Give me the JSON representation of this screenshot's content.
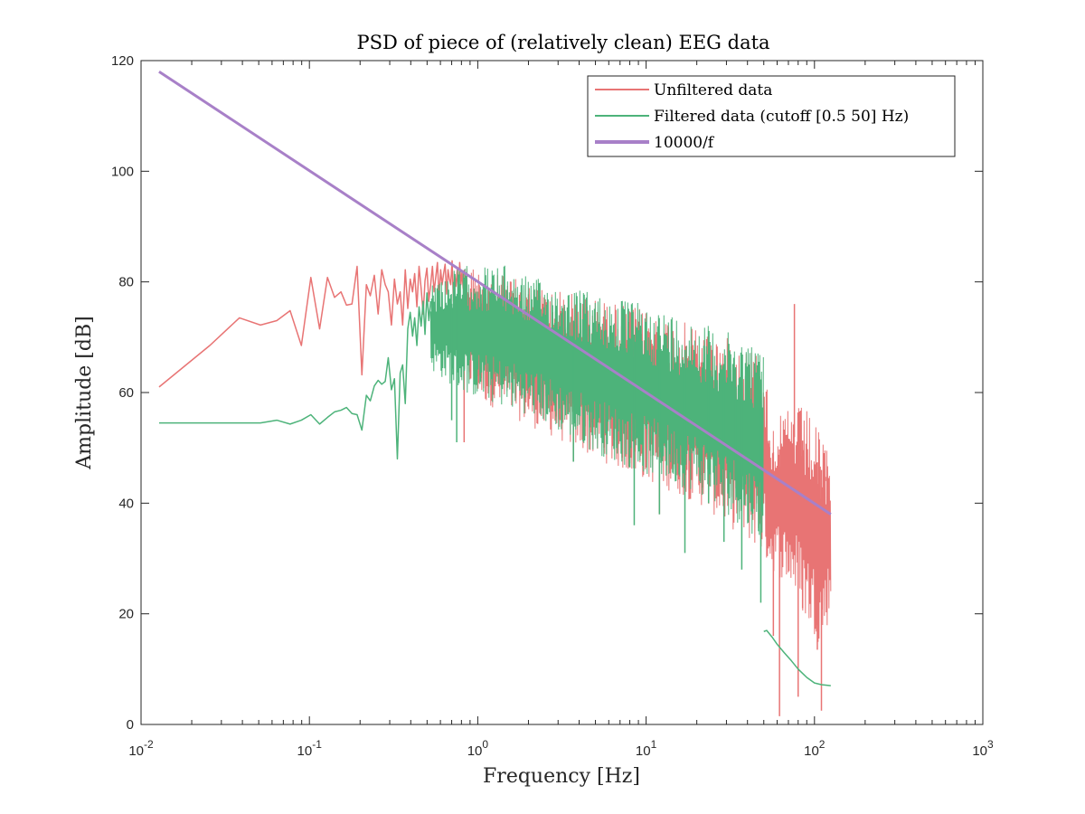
{
  "chart_data": {
    "type": "line",
    "title": "PSD of piece of (relatively clean) EEG data",
    "xlabel": "Frequency [Hz]",
    "ylabel": "Amplitude [dB]",
    "xscale": "log",
    "xlim": [
      0.01,
      1000
    ],
    "ylim": [
      0,
      120
    ],
    "x_ticks": [
      {
        "value": 0.01,
        "base": "10",
        "exp": "-2"
      },
      {
        "value": 0.1,
        "base": "10",
        "exp": "-1"
      },
      {
        "value": 1,
        "base": "10",
        "exp": "0"
      },
      {
        "value": 10,
        "base": "10",
        "exp": "1"
      },
      {
        "value": 100,
        "base": "10",
        "exp": "2"
      },
      {
        "value": 1000,
        "base": "10",
        "exp": "3"
      }
    ],
    "y_ticks": [
      0,
      20,
      40,
      60,
      80,
      100,
      120
    ],
    "grid": false,
    "legend_position": "top-right",
    "series": [
      {
        "name": "Unfiltered data",
        "color": "#e87474",
        "x": [
          0.0128,
          0.0256,
          0.0384,
          0.0512,
          0.064,
          0.0768,
          0.0896,
          0.102,
          0.115,
          0.128,
          0.141,
          0.154,
          0.166,
          0.179,
          0.192,
          0.205,
          0.218,
          0.23,
          0.243,
          0.256,
          0.269,
          0.282,
          0.294,
          0.307,
          0.32,
          0.333,
          0.346,
          0.358,
          0.371,
          0.384,
          0.397,
          0.41,
          0.422,
          0.435,
          0.448,
          0.461,
          0.474,
          0.486,
          0.499,
          0.512,
          0.525,
          0.538,
          0.55,
          0.563,
          0.576,
          0.589,
          0.602,
          0.614,
          0.627,
          0.64,
          0.653,
          0.666,
          0.678,
          0.691,
          0.704,
          0.717,
          0.73,
          0.742,
          0.755,
          0.768,
          0.781,
          0.794,
          0.806,
          0.819,
          0.832
        ],
        "y": [
          61,
          68.5,
          73.5,
          72.2,
          73,
          74.8,
          68.5,
          80.8,
          71.5,
          80.8,
          77.2,
          78.2,
          75.8,
          76,
          82.8,
          63.2,
          79.5,
          77.5,
          81.2,
          74.2,
          82.2,
          79.5,
          78.2,
          72.2,
          80.5,
          76,
          78.2,
          72.2,
          82.2,
          75.2,
          80.5,
          78.2,
          81.5,
          75.5,
          82.8,
          78.8,
          74.2,
          80.2,
          82.5,
          76.5,
          79.5,
          82.8,
          78.2,
          80.8,
          83.5,
          77.2,
          82.2,
          79.5,
          81.5,
          83.2,
          77.8,
          82.2,
          80.5,
          79.5,
          83.8,
          76.5,
          81.2,
          79.2,
          82.2,
          77.5,
          83.5,
          79.5,
          81.8,
          78.8,
          82.2
        ],
        "band": {
          "x_range": [
            0.83,
            125
          ],
          "upper_db": [
            [
              0.83,
              84
            ],
            [
              1.1,
              82
            ],
            [
              2,
              80
            ],
            [
              5,
              77
            ],
            [
              10,
              75
            ],
            [
              20,
              72
            ],
            [
              30,
              70
            ],
            [
              45,
              68
            ],
            [
              50,
              67
            ],
            [
              55,
              55
            ],
            [
              65,
              56
            ],
            [
              75,
              58
            ],
            [
              90,
              57
            ],
            [
              110,
              52
            ],
            [
              125,
              49
            ]
          ],
          "lower_db": [
            [
              0.83,
              62
            ],
            [
              1.1,
              58
            ],
            [
              2,
              54
            ],
            [
              5,
              48
            ],
            [
              10,
              44
            ],
            [
              20,
              40
            ],
            [
              30,
              36
            ],
            [
              45,
              32
            ],
            [
              50,
              30
            ],
            [
              55,
              28
            ],
            [
              65,
              26
            ],
            [
              75,
              24
            ],
            [
              90,
              18
            ],
            [
              110,
              14
            ],
            [
              125,
              20
            ]
          ],
          "spikes": [
            [
              0.83,
              51
            ],
            [
              3.7,
              47.5
            ],
            [
              12,
              38
            ],
            [
              29,
              37.5
            ],
            [
              54,
              42
            ],
            [
              57,
              16
            ],
            [
              62,
              1.5
            ],
            [
              76,
              76
            ],
            [
              80,
              5
            ],
            [
              85,
              21
            ],
            [
              104,
              13.5
            ],
            [
              110,
              2.5
            ],
            [
              116,
              44
            ]
          ]
        }
      },
      {
        "name": "Filtered data (cutoff [0.5 50] Hz)",
        "color": "#4db37a",
        "x": [
          0.0128,
          0.0256,
          0.0384,
          0.0512,
          0.064,
          0.0768,
          0.0896,
          0.102,
          0.115,
          0.128,
          0.141,
          0.154,
          0.166,
          0.179,
          0.192,
          0.205,
          0.218,
          0.23,
          0.243,
          0.256,
          0.269,
          0.282,
          0.294,
          0.307,
          0.32,
          0.333,
          0.346,
          0.358,
          0.371,
          0.384,
          0.397,
          0.41,
          0.422,
          0.435,
          0.448,
          0.461,
          0.474,
          0.486,
          0.499,
          0.512,
          0.525
        ],
        "y": [
          54.5,
          54.5,
          54.5,
          54.5,
          55,
          54.3,
          55,
          56,
          54.3,
          55.5,
          56.5,
          56.8,
          57.3,
          56.2,
          56,
          53.2,
          59.5,
          58.5,
          61.2,
          62.2,
          61.5,
          62,
          66.3,
          60.5,
          62.5,
          48,
          63.5,
          65,
          58,
          71.5,
          74.5,
          70.2,
          73.5,
          68.5,
          75.5,
          72,
          76.5,
          70.5,
          78,
          73,
          76.5
        ],
        "band": {
          "x_range": [
            0.525,
            50
          ],
          "upper_db": [
            [
              0.525,
              80
            ],
            [
              0.8,
              83
            ],
            [
              1.5,
              83
            ],
            [
              2,
              81
            ],
            [
              5,
              78
            ],
            [
              10,
              76
            ],
            [
              20,
              73
            ],
            [
              30,
              71
            ],
            [
              40,
              70
            ],
            [
              50,
              68
            ]
          ],
          "lower_db": [
            [
              0.525,
              64
            ],
            [
              0.8,
              60
            ],
            [
              1.5,
              57
            ],
            [
              2,
              56
            ],
            [
              5,
              49
            ],
            [
              10,
              45
            ],
            [
              20,
              42
            ],
            [
              30,
              38
            ],
            [
              40,
              35
            ],
            [
              50,
              33
            ]
          ],
          "spikes": [
            [
              0.7,
              55
            ],
            [
              0.75,
              51
            ],
            [
              3.7,
              47.5
            ],
            [
              8.5,
              36
            ],
            [
              12,
              38
            ],
            [
              17,
              31
            ],
            [
              23.5,
              40
            ],
            [
              29,
              33
            ],
            [
              34,
              45
            ],
            [
              37,
              28
            ],
            [
              48,
              22
            ]
          ]
        },
        "tail": {
          "x": [
            50,
            52,
            56,
            60,
            66,
            73,
            80,
            90,
            100,
            110,
            125
          ],
          "y": [
            16.8,
            17,
            15.8,
            14.5,
            13,
            11.5,
            10,
            8.5,
            7.5,
            7.2,
            7
          ]
        }
      },
      {
        "name": "10000/f",
        "color": "#a880c8",
        "x": [
          0.0128,
          125
        ],
        "y": [
          118,
          38
        ]
      }
    ]
  }
}
